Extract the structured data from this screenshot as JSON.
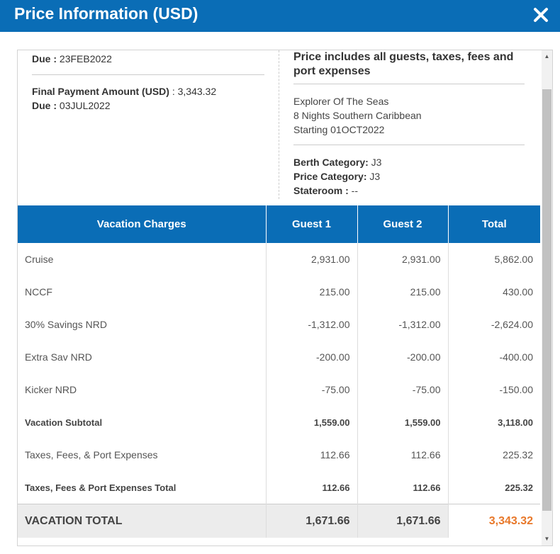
{
  "dialog": {
    "title": "Price Information (USD)",
    "close_icon": "close-icon"
  },
  "payment": {
    "due_label": "Due",
    "due_sep": " : ",
    "deposit_due": "23FEB2022",
    "final_label": "Final Payment Amount (USD)",
    "final_sep": " : ",
    "final_amount": "3,343.32",
    "final_due_label": "Due",
    "final_due_sep": " : ",
    "final_due": "03JUL2022"
  },
  "summary": {
    "heading": "Price includes all guests, taxes, fees and port expenses",
    "ship": "Explorer Of The Seas",
    "itinerary": "8 Nights Southern Caribbean",
    "starting": "Starting 01OCT2022",
    "berth_label": "Berth Category:",
    "berth_value": " J3",
    "price_label": "Price Category:",
    "price_value": " J3",
    "stateroom_label": "Stateroom :",
    "stateroom_value": " --"
  },
  "table": {
    "headers": [
      "Vacation Charges",
      "Guest 1",
      "Guest 2",
      "Total"
    ],
    "rows": [
      [
        "Cruise",
        "2,931.00",
        "2,931.00",
        "5,862.00"
      ],
      [
        "NCCF",
        "215.00",
        "215.00",
        "430.00"
      ],
      [
        "30% Savings NRD",
        "-1,312.00",
        "-1,312.00",
        "-2,624.00"
      ],
      [
        "Extra Sav NRD",
        "-200.00",
        "-200.00",
        "-400.00"
      ],
      [
        "Kicker NRD",
        "-75.00",
        "-75.00",
        "-150.00"
      ],
      [
        "Vacation Subtotal",
        "1,559.00",
        "1,559.00",
        "3,118.00"
      ],
      [
        "Taxes, Fees, & Port Expenses",
        "112.66",
        "112.66",
        "225.32"
      ],
      [
        "Taxes, Fees & Port Expenses Total",
        "112.66",
        "112.66",
        "225.32"
      ]
    ],
    "total_row": [
      "VACATION TOTAL",
      "1,671.66",
      "1,671.66",
      "3,343.32"
    ]
  },
  "colors": {
    "brand": "#0a6db6",
    "grand_total": "#e8782a"
  }
}
